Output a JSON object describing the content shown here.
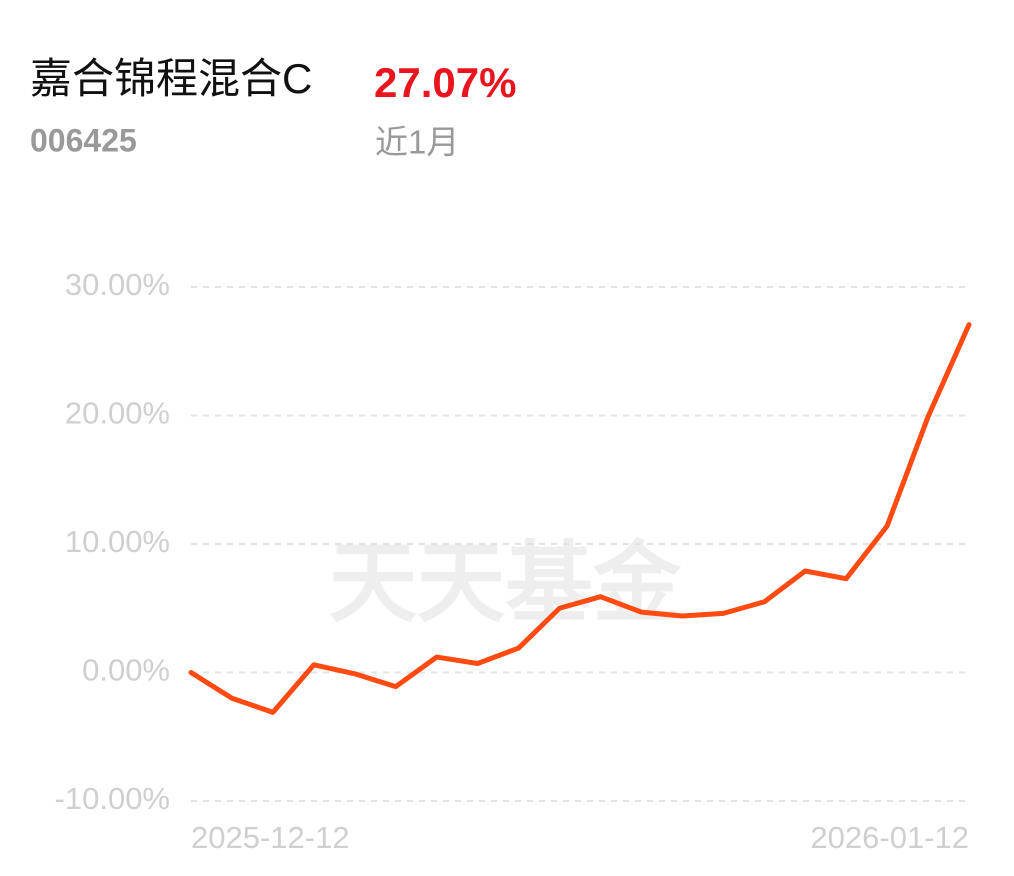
{
  "header": {
    "fund_name": "嘉合锦程混合C",
    "fund_code": "006425",
    "return": "27.07%",
    "period": "近1月"
  },
  "chart_data": {
    "type": "line",
    "watermark": "天天基金",
    "categories": [
      "2025-12-12",
      null,
      null,
      null,
      null,
      null,
      null,
      null,
      null,
      null,
      null,
      null,
      null,
      null,
      null,
      null,
      null,
      null,
      null,
      "2026-01-12"
    ],
    "series": [
      {
        "color": "#ff4a12",
        "values": [
          0,
          -2.0,
          -3.1,
          0.6,
          -0.1,
          -1.1,
          1.2,
          0.7,
          1.9,
          5.0,
          5.9,
          4.7,
          4.4,
          4.6,
          5.5,
          7.9,
          7.3,
          11.4,
          19.9,
          27.07
        ]
      }
    ],
    "ylim": [
      -10,
      30
    ],
    "yticks": [
      {
        "value": 30,
        "label": "30.00%"
      },
      {
        "value": 20,
        "label": "20.00%"
      },
      {
        "value": 10,
        "label": "10.00%"
      },
      {
        "value": 0,
        "label": "0.00%"
      },
      {
        "value": -10,
        "label": "-10.00%"
      }
    ],
    "grid": true
  }
}
